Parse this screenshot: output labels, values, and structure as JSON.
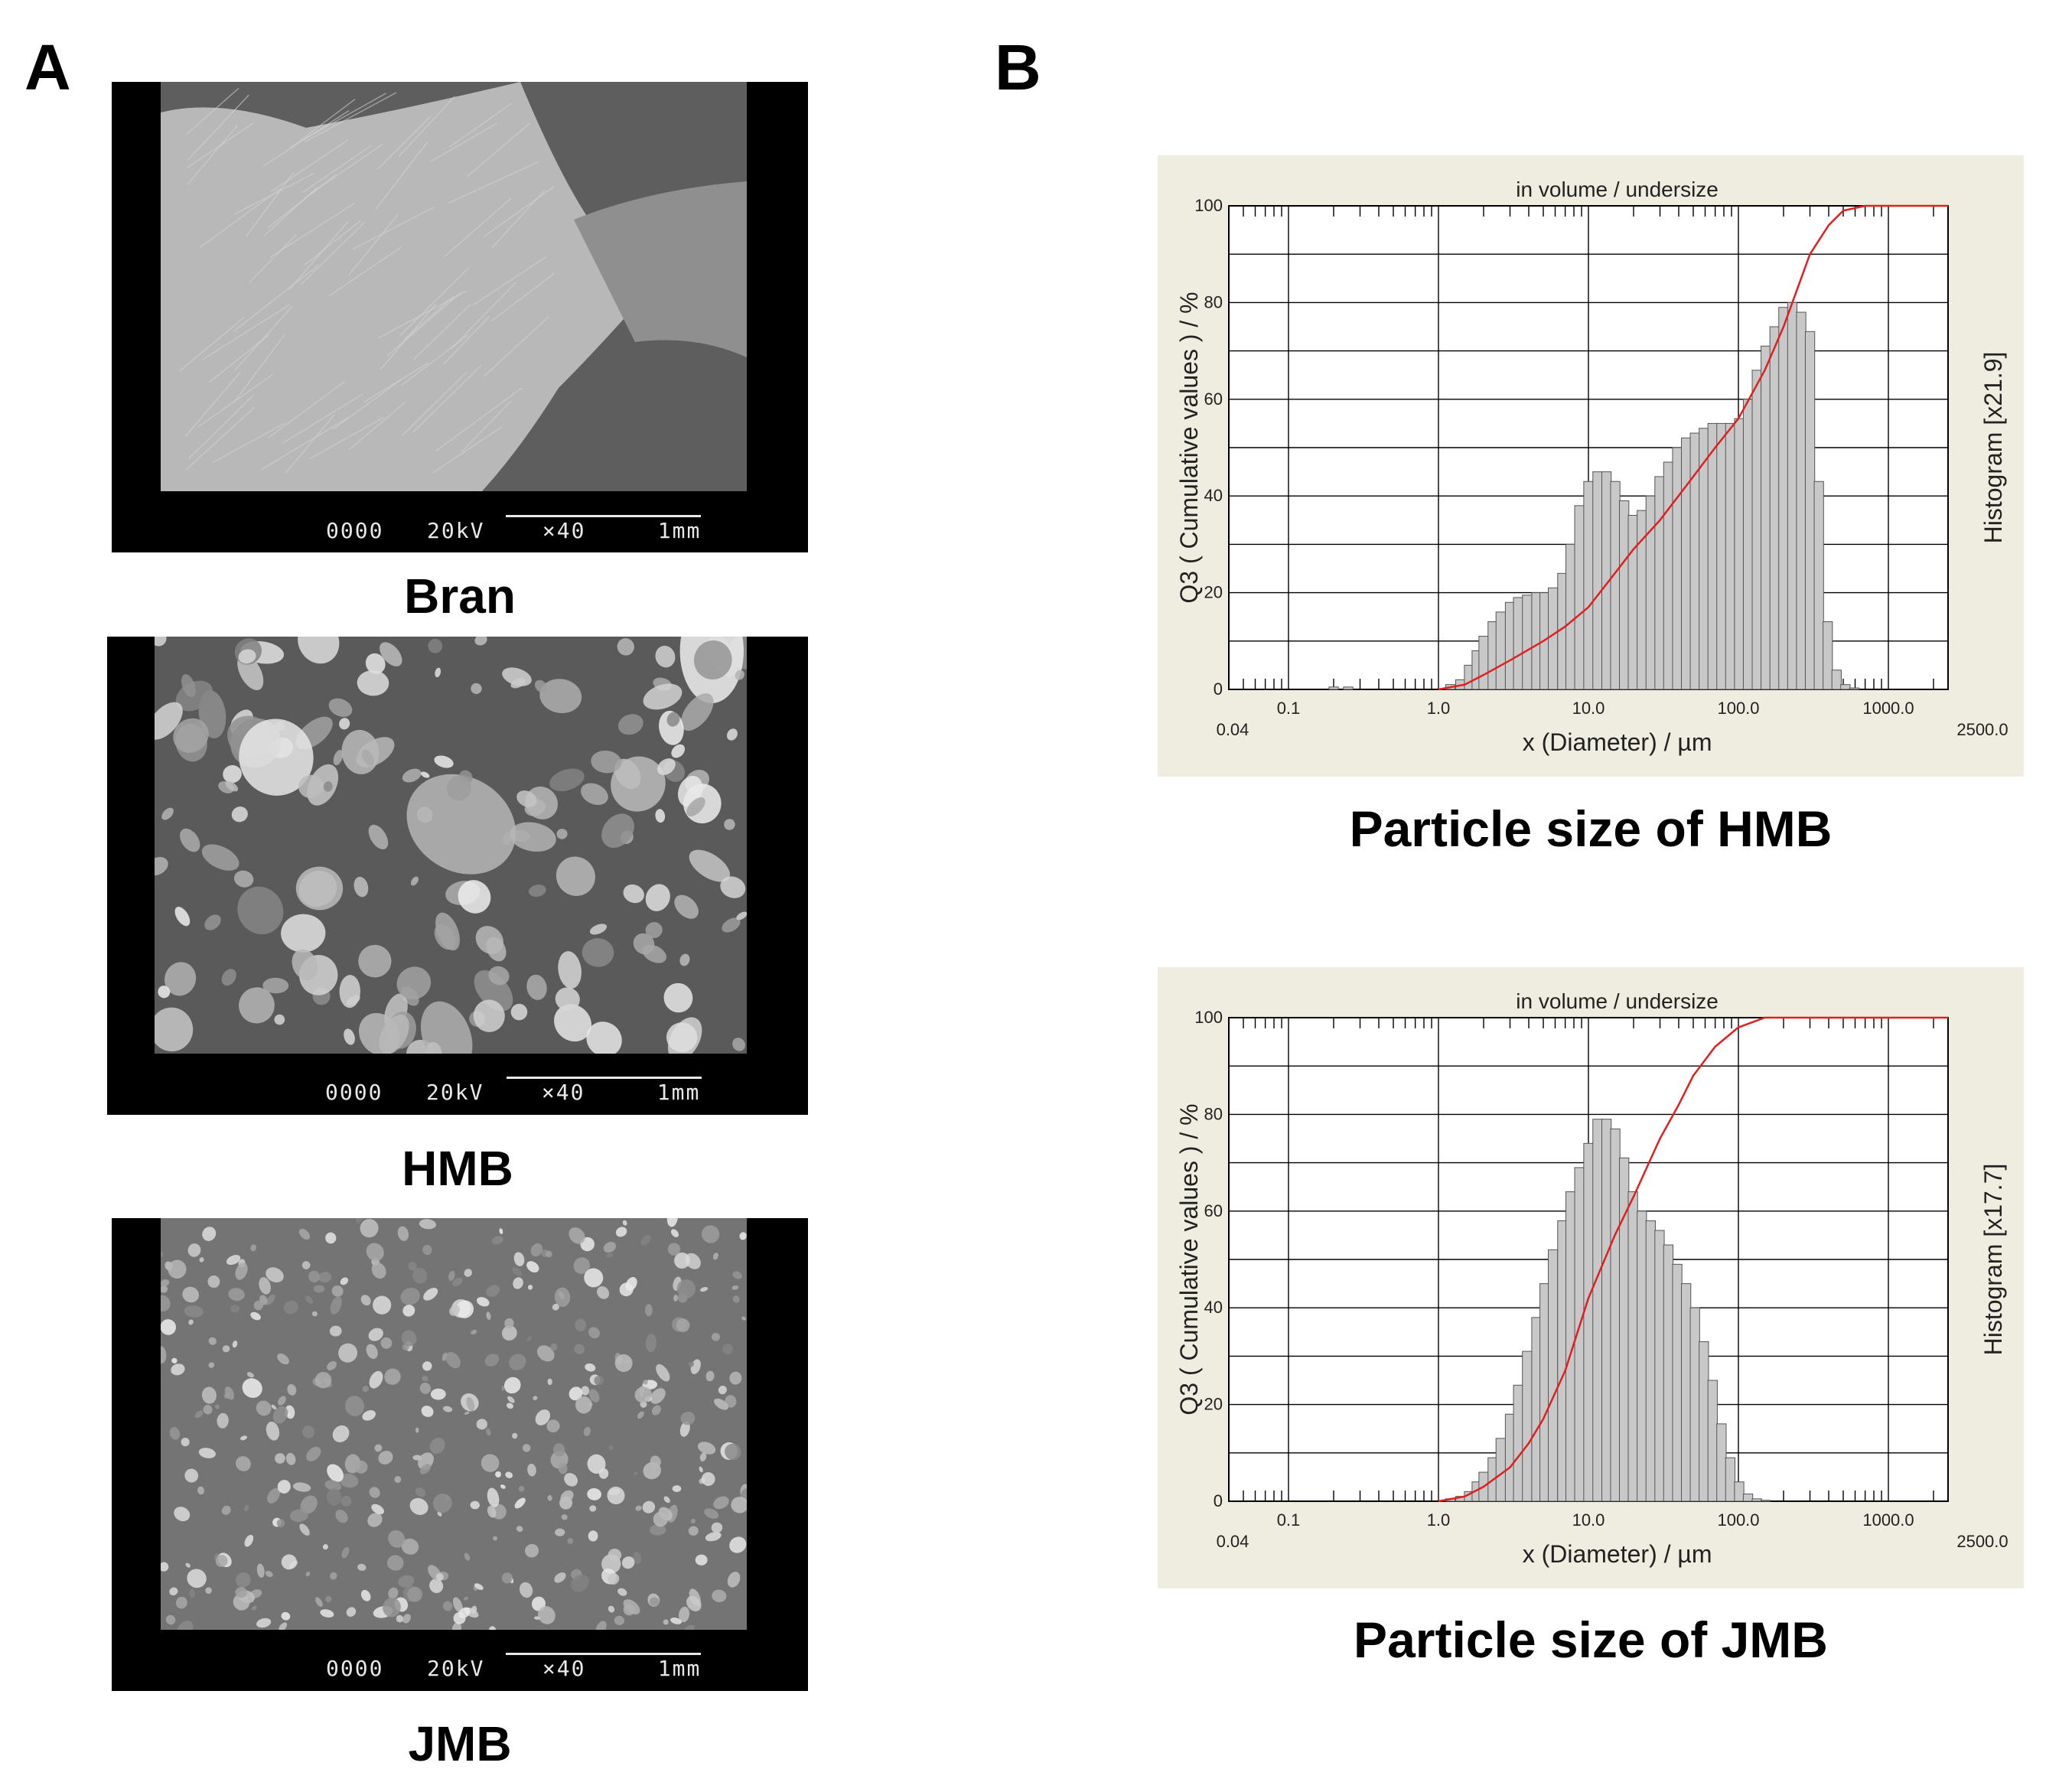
{
  "panels": {
    "a_label": "A",
    "b_label": "B"
  },
  "sem": [
    {
      "caption": "Bran",
      "code": "0000",
      "kv": "20kV",
      "mag": "×40",
      "scale": "1mm",
      "texture": "bran"
    },
    {
      "caption": "HMB",
      "code": "0000",
      "kv": "20kV",
      "mag": "×40",
      "scale": "1mm",
      "texture": "coarse"
    },
    {
      "caption": "JMB",
      "code": "0000",
      "kv": "20kV",
      "mag": "×40",
      "scale": "1mm",
      "texture": "fine"
    }
  ],
  "colors": {
    "chart_bg": "#efece0",
    "plot_bg": "#ffffff",
    "bar_fill": "#c8c8c8",
    "bar_stroke": "#555555",
    "cumulative_line": "#e02020"
  },
  "chart_data": [
    {
      "type": "bar",
      "title": "in volume / undersize",
      "caption": "Particle size of HMB",
      "xlabel": "x (Diameter) / µm",
      "ylabel": "Q3 ( Cumulative values ) / %",
      "y2label": "Histogram [x21.9]",
      "x_scale": "log",
      "xlim": [
        0.04,
        2500.0
      ],
      "ylim": [
        0,
        100
      ],
      "x_ticks": [
        "0.04",
        "0.1",
        "1.0",
        "10.0",
        "100.0",
        "1000.0",
        "2500.0"
      ],
      "y_ticks": [
        "0",
        "20",
        "40",
        "60",
        "80",
        "100"
      ],
      "grid": true,
      "histogram": {
        "x": [
          0.2,
          0.25,
          1.2,
          1.4,
          1.6,
          1.8,
          2.0,
          2.3,
          2.6,
          3.0,
          3.4,
          3.9,
          4.5,
          5.1,
          5.8,
          6.7,
          7.6,
          8.7,
          10.0,
          11.5,
          13.2,
          15.1,
          17.3,
          19.8,
          22.7,
          26.0,
          29.8,
          34.1,
          39.1,
          44.8,
          51.3,
          58.8,
          67.3,
          77.1,
          88.3,
          101.2,
          115.9,
          132.8,
          152.1,
          174.3,
          199.7,
          228.8,
          262.1,
          300.3,
          344.0,
          394.1,
          451.5,
          517.2,
          592.5
        ],
        "values": [
          0.5,
          0.5,
          1,
          2,
          5,
          8,
          11,
          14,
          16,
          18,
          19,
          19.5,
          20,
          20,
          21,
          24,
          30,
          38,
          43,
          45,
          45,
          43,
          39,
          36,
          37,
          40,
          44,
          47,
          50,
          52,
          53,
          54,
          55,
          55,
          55,
          56,
          60,
          66,
          71,
          75,
          79,
          80,
          78,
          74,
          43,
          14,
          4,
          1,
          0.3
        ]
      },
      "cumulative": {
        "x": [
          1.0,
          1.5,
          2.0,
          3.0,
          5.0,
          7.0,
          10.0,
          15.0,
          20.0,
          30.0,
          50.0,
          70.0,
          100.0,
          150.0,
          200.0,
          300.0,
          400.0,
          500.0,
          700.0,
          2500.0
        ],
        "values": [
          0,
          1,
          3,
          6,
          10,
          13,
          17,
          24,
          29,
          35,
          44,
          50,
          56,
          66,
          75,
          90,
          96,
          99,
          100,
          100
        ]
      }
    },
    {
      "type": "bar",
      "title": "in volume / undersize",
      "caption": "Particle size of JMB",
      "xlabel": "x (Diameter) / µm",
      "ylabel": "Q3 ( Cumulative values ) / %",
      "y2label": "Histogram [x17.7]",
      "x_scale": "log",
      "xlim": [
        0.04,
        2500.0
      ],
      "ylim": [
        0,
        100
      ],
      "x_ticks": [
        "0.04",
        "0.1",
        "1.0",
        "10.0",
        "100.0",
        "1000.0",
        "2500.0"
      ],
      "y_ticks": [
        "0",
        "20",
        "40",
        "60",
        "80",
        "100"
      ],
      "grid": true,
      "histogram": {
        "x": [
          1.2,
          1.4,
          1.6,
          1.8,
          2.0,
          2.3,
          2.6,
          3.0,
          3.4,
          3.9,
          4.5,
          5.1,
          5.8,
          6.7,
          7.6,
          8.7,
          10.0,
          11.5,
          13.2,
          15.1,
          17.3,
          19.8,
          22.7,
          26.0,
          29.8,
          34.1,
          39.1,
          44.8,
          51.3,
          58.8,
          67.3,
          77.1,
          88.3,
          101.2,
          115.9,
          132.8,
          152.1
        ],
        "values": [
          0.5,
          1,
          2,
          4,
          6,
          9,
          13,
          18,
          24,
          31,
          38,
          45,
          52,
          58,
          64,
          69,
          74,
          79,
          79,
          77,
          71,
          64,
          60,
          58,
          56,
          53,
          49,
          45,
          40,
          33,
          25,
          16,
          9,
          4,
          1.5,
          0.5,
          0.2
        ]
      },
      "cumulative": {
        "x": [
          1.0,
          1.5,
          2.0,
          3.0,
          4.0,
          5.0,
          7.0,
          10.0,
          15.0,
          20.0,
          30.0,
          40.0,
          50.0,
          70.0,
          100.0,
          150.0,
          200.0,
          2500.0
        ],
        "values": [
          0,
          1,
          3,
          7,
          12,
          17,
          27,
          42,
          55,
          63,
          75,
          82,
          88,
          94,
          98,
          100,
          100,
          100
        ]
      }
    }
  ]
}
